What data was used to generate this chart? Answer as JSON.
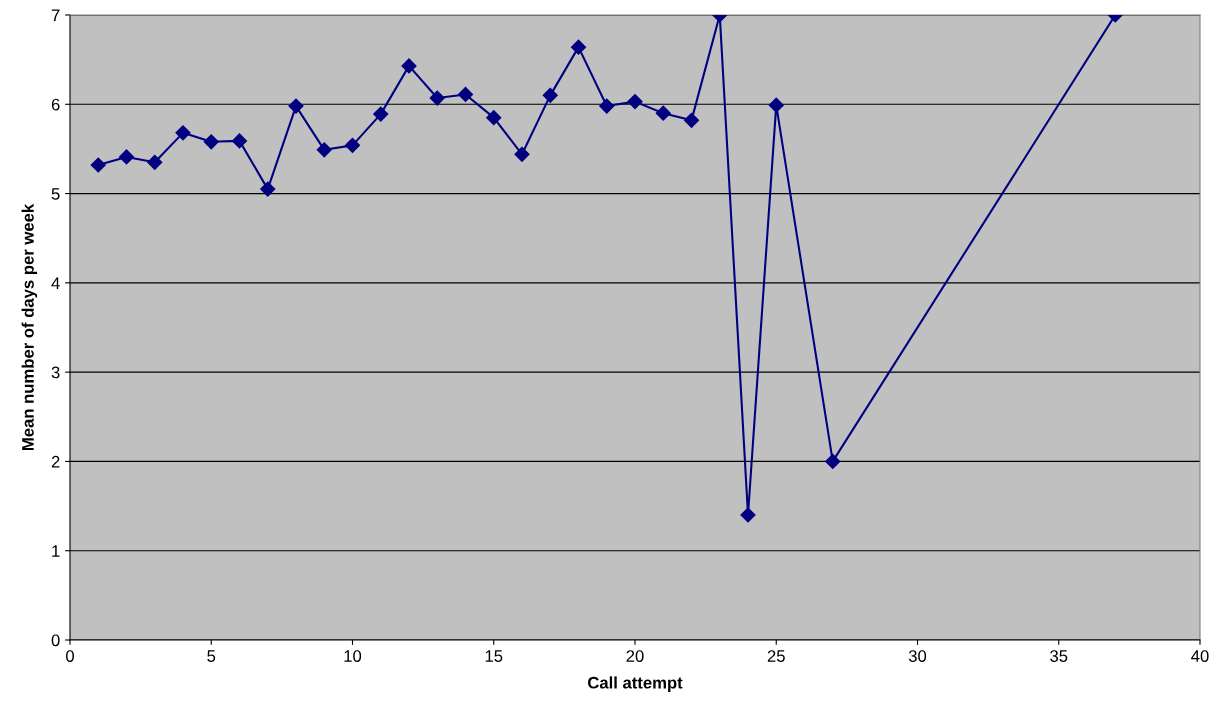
{
  "chart_data": {
    "type": "line",
    "xlabel": "Call attempt",
    "ylabel": "Mean number of days per week",
    "x": [
      1,
      2,
      3,
      4,
      5,
      6,
      7,
      8,
      9,
      10,
      11,
      12,
      13,
      14,
      15,
      16,
      17,
      18,
      19,
      20,
      21,
      22,
      23,
      24,
      25,
      27,
      37
    ],
    "series": [
      {
        "color": "#000080",
        "values": [
          5.32,
          5.41,
          5.35,
          5.68,
          5.58,
          5.59,
          5.05,
          5.98,
          5.49,
          5.54,
          5.89,
          6.43,
          6.07,
          6.11,
          5.85,
          5.44,
          6.1,
          6.64,
          5.98,
          6.03,
          5.9,
          5.82,
          7.0,
          1.4,
          5.99,
          2.0,
          7.0
        ]
      }
    ],
    "xlim": [
      0,
      40
    ],
    "xticks": [
      0,
      5,
      10,
      15,
      20,
      25,
      30,
      35,
      40
    ],
    "ylim": [
      0,
      7
    ],
    "yticks": [
      0,
      1,
      2,
      3,
      4,
      5,
      6,
      7
    ],
    "grid": "y",
    "marker": "diamond",
    "line_style": "solid",
    "legend": false
  }
}
